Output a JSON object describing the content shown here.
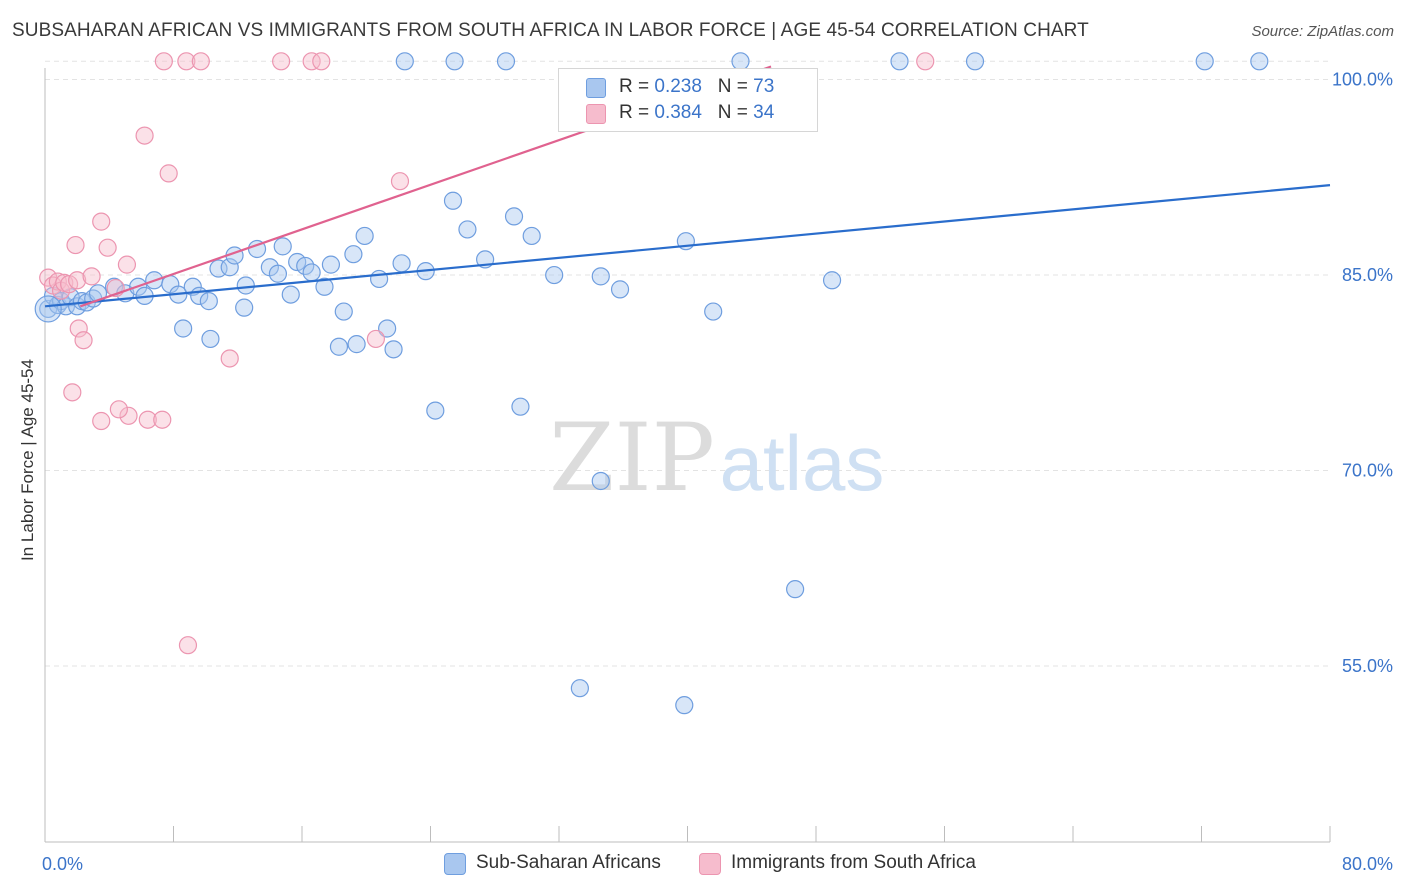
{
  "title": "SUBSAHARAN AFRICAN VS IMMIGRANTS FROM SOUTH AFRICA IN LABOR FORCE | AGE 45-54 CORRELATION CHART",
  "source": "Source: ZipAtlas.com",
  "watermark": {
    "zip": "ZIP",
    "atlas": "atlas"
  },
  "colors": {
    "blue_fill": "#a9c7ef",
    "blue_stroke": "#6f9edf",
    "blue_line": "#2a6dcc",
    "pink_fill": "#f6bccd",
    "pink_stroke": "#ec95b0",
    "pink_line": "#e0628f",
    "axis_label": "#3b74c9",
    "grid": "#e3e3e3"
  },
  "legend": {
    "rows": [
      {
        "r_label": "R = ",
        "r_value": "0.238",
        "n_label": "N = ",
        "n_value": "73"
      },
      {
        "r_label": "R = ",
        "r_value": "0.384",
        "n_label": "N = ",
        "n_value": "34"
      }
    ]
  },
  "chart_data": {
    "type": "scatter",
    "title": "SUBSAHARAN AFRICAN VS IMMIGRANTS FROM SOUTH AFRICA IN LABOR FORCE | AGE 45-54 CORRELATION CHART",
    "xlabel": "",
    "ylabel": "In Labor Force | Age 45-54",
    "xlim": [
      0,
      80
    ],
    "ylim": [
      41.5,
      101.5
    ],
    "x_tick_labels": [
      "0.0%",
      "80.0%"
    ],
    "y_ticks": [
      55,
      70,
      85,
      100
    ],
    "y_tick_labels": [
      "55.0%",
      "70.0%",
      "85.0%",
      "100.0%"
    ],
    "grid": true,
    "legend_position": "top-center",
    "series": [
      {
        "name": "Sub-Saharan Africans",
        "color": "#6f9edf",
        "trend": {
          "x": [
            0,
            80
          ],
          "y": [
            82.6,
            91.9
          ]
        },
        "points": [
          [
            0.2,
            82.4
          ],
          [
            0.5,
            83.4
          ],
          [
            0.8,
            82.7
          ],
          [
            1.0,
            83.0
          ],
          [
            1.3,
            82.6
          ],
          [
            1.6,
            83.3
          ],
          [
            2.0,
            82.6
          ],
          [
            2.3,
            83.0
          ],
          [
            2.6,
            82.9
          ],
          [
            3.0,
            83.2
          ],
          [
            3.3,
            83.6
          ],
          [
            4.3,
            84.1
          ],
          [
            5.0,
            83.6
          ],
          [
            5.8,
            84.1
          ],
          [
            6.2,
            83.4
          ],
          [
            6.8,
            84.6
          ],
          [
            7.8,
            84.3
          ],
          [
            8.3,
            83.5
          ],
          [
            8.6,
            80.9
          ],
          [
            9.2,
            84.1
          ],
          [
            9.6,
            83.4
          ],
          [
            10.2,
            83.0
          ],
          [
            10.3,
            80.1
          ],
          [
            10.8,
            85.5
          ],
          [
            11.5,
            85.6
          ],
          [
            11.8,
            86.5
          ],
          [
            12.4,
            82.5
          ],
          [
            12.5,
            84.2
          ],
          [
            13.2,
            87.0
          ],
          [
            14.0,
            85.6
          ],
          [
            14.5,
            85.1
          ],
          [
            14.8,
            87.2
          ],
          [
            15.3,
            83.5
          ],
          [
            15.7,
            86.0
          ],
          [
            16.2,
            85.7
          ],
          [
            16.6,
            85.2
          ],
          [
            17.4,
            84.1
          ],
          [
            17.8,
            85.8
          ],
          [
            18.6,
            82.2
          ],
          [
            18.3,
            79.5
          ],
          [
            19.2,
            86.6
          ],
          [
            19.4,
            79.7
          ],
          [
            19.9,
            88.0
          ],
          [
            20.8,
            84.7
          ],
          [
            21.7,
            79.3
          ],
          [
            21.3,
            80.9
          ],
          [
            22.2,
            85.9
          ],
          [
            23.7,
            85.3
          ],
          [
            24.3,
            74.6
          ],
          [
            25.4,
            90.7
          ],
          [
            26.3,
            88.5
          ],
          [
            27.4,
            86.2
          ],
          [
            29.2,
            89.5
          ],
          [
            29.6,
            74.9
          ],
          [
            30.3,
            88.0
          ],
          [
            31.7,
            85.0
          ],
          [
            33.3,
            53.3
          ],
          [
            34.6,
            84.9
          ],
          [
            34.6,
            69.2
          ],
          [
            35.8,
            83.9
          ],
          [
            39.9,
            87.6
          ],
          [
            39.8,
            52.0
          ],
          [
            41.6,
            82.2
          ],
          [
            46.7,
            60.9
          ],
          [
            49.0,
            84.6
          ],
          [
            22.4,
            101.4
          ],
          [
            25.5,
            101.4
          ],
          [
            28.7,
            101.4
          ],
          [
            43.3,
            101.4
          ],
          [
            53.2,
            101.4
          ],
          [
            57.9,
            101.4
          ],
          [
            72.2,
            101.4
          ],
          [
            75.6,
            101.4
          ]
        ]
      },
      {
        "name": "Immigrants from South Africa",
        "color": "#ec95b0",
        "trend": {
          "x": [
            2.2,
            45.2
          ],
          "y": [
            82.6,
            101.0
          ]
        },
        "points": [
          [
            0.2,
            84.8
          ],
          [
            0.5,
            84.2
          ],
          [
            0.8,
            84.5
          ],
          [
            1.0,
            83.8
          ],
          [
            1.2,
            84.4
          ],
          [
            1.5,
            84.3
          ],
          [
            2.0,
            84.6
          ],
          [
            2.1,
            80.9
          ],
          [
            1.9,
            87.3
          ],
          [
            2.4,
            80.0
          ],
          [
            1.7,
            76.0
          ],
          [
            2.9,
            84.9
          ],
          [
            3.5,
            89.1
          ],
          [
            3.9,
            87.1
          ],
          [
            4.4,
            84.0
          ],
          [
            5.1,
            85.8
          ],
          [
            5.2,
            74.2
          ],
          [
            4.6,
            74.7
          ],
          [
            3.5,
            73.8
          ],
          [
            6.2,
            95.7
          ],
          [
            6.4,
            73.9
          ],
          [
            7.3,
            73.9
          ],
          [
            7.7,
            92.8
          ],
          [
            11.5,
            78.6
          ],
          [
            20.6,
            80.1
          ],
          [
            22.1,
            92.2
          ],
          [
            7.4,
            101.4
          ],
          [
            8.8,
            101.4
          ],
          [
            9.7,
            101.4
          ],
          [
            14.7,
            101.4
          ],
          [
            16.6,
            101.4
          ],
          [
            17.2,
            101.4
          ],
          [
            54.8,
            101.4
          ],
          [
            8.9,
            56.6
          ]
        ]
      }
    ]
  }
}
